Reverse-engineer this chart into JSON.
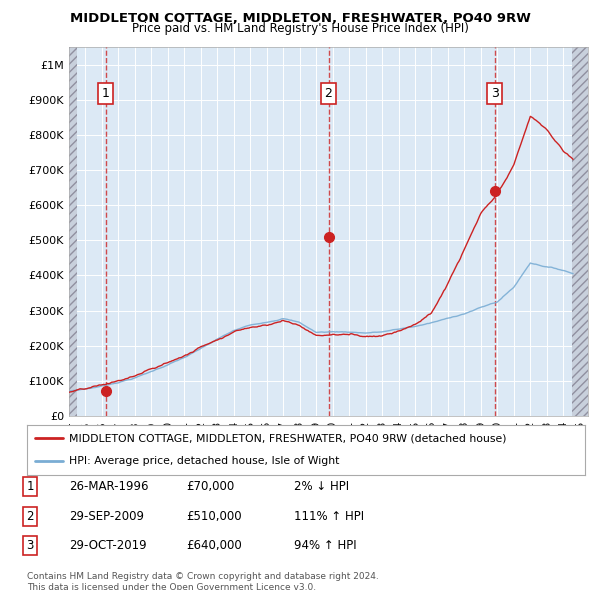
{
  "title": "MIDDLETON COTTAGE, MIDDLETON, FRESHWATER, PO40 9RW",
  "subtitle": "Price paid vs. HM Land Registry's House Price Index (HPI)",
  "xlim": [
    1994.0,
    2025.5
  ],
  "ylim": [
    0,
    1050000
  ],
  "yticks": [
    0,
    100000,
    200000,
    300000,
    400000,
    500000,
    600000,
    700000,
    800000,
    900000,
    1000000
  ],
  "ytick_labels": [
    "£0",
    "£100K",
    "£200K",
    "£300K",
    "£400K",
    "£500K",
    "£600K",
    "£700K",
    "£800K",
    "£900K",
    "£1M"
  ],
  "xticks": [
    1994,
    1995,
    1996,
    1997,
    1998,
    1999,
    2000,
    2001,
    2002,
    2003,
    2004,
    2005,
    2006,
    2007,
    2008,
    2009,
    2010,
    2011,
    2012,
    2013,
    2014,
    2015,
    2016,
    2017,
    2018,
    2019,
    2020,
    2021,
    2022,
    2023,
    2024,
    2025
  ],
  "sale_dates": [
    1996.23,
    2009.75,
    2019.83
  ],
  "sale_prices": [
    70000,
    510000,
    640000
  ],
  "sale_labels": [
    "1",
    "2",
    "3"
  ],
  "hpi_color": "#7aadd4",
  "price_color": "#cc2222",
  "background_color": "#dce9f5",
  "legend_line1": "MIDDLETON COTTAGE, MIDDLETON, FRESHWATER, PO40 9RW (detached house)",
  "legend_line2": "HPI: Average price, detached house, Isle of Wight",
  "table_rows": [
    [
      "1",
      "26-MAR-1996",
      "£70,000",
      "2% ↓ HPI"
    ],
    [
      "2",
      "29-SEP-2009",
      "£510,000",
      "111% ↑ HPI"
    ],
    [
      "3",
      "29-OCT-2019",
      "£640,000",
      "94% ↑ HPI"
    ]
  ],
  "footer": "Contains HM Land Registry data © Crown copyright and database right 2024.\nThis data is licensed under the Open Government Licence v3.0."
}
